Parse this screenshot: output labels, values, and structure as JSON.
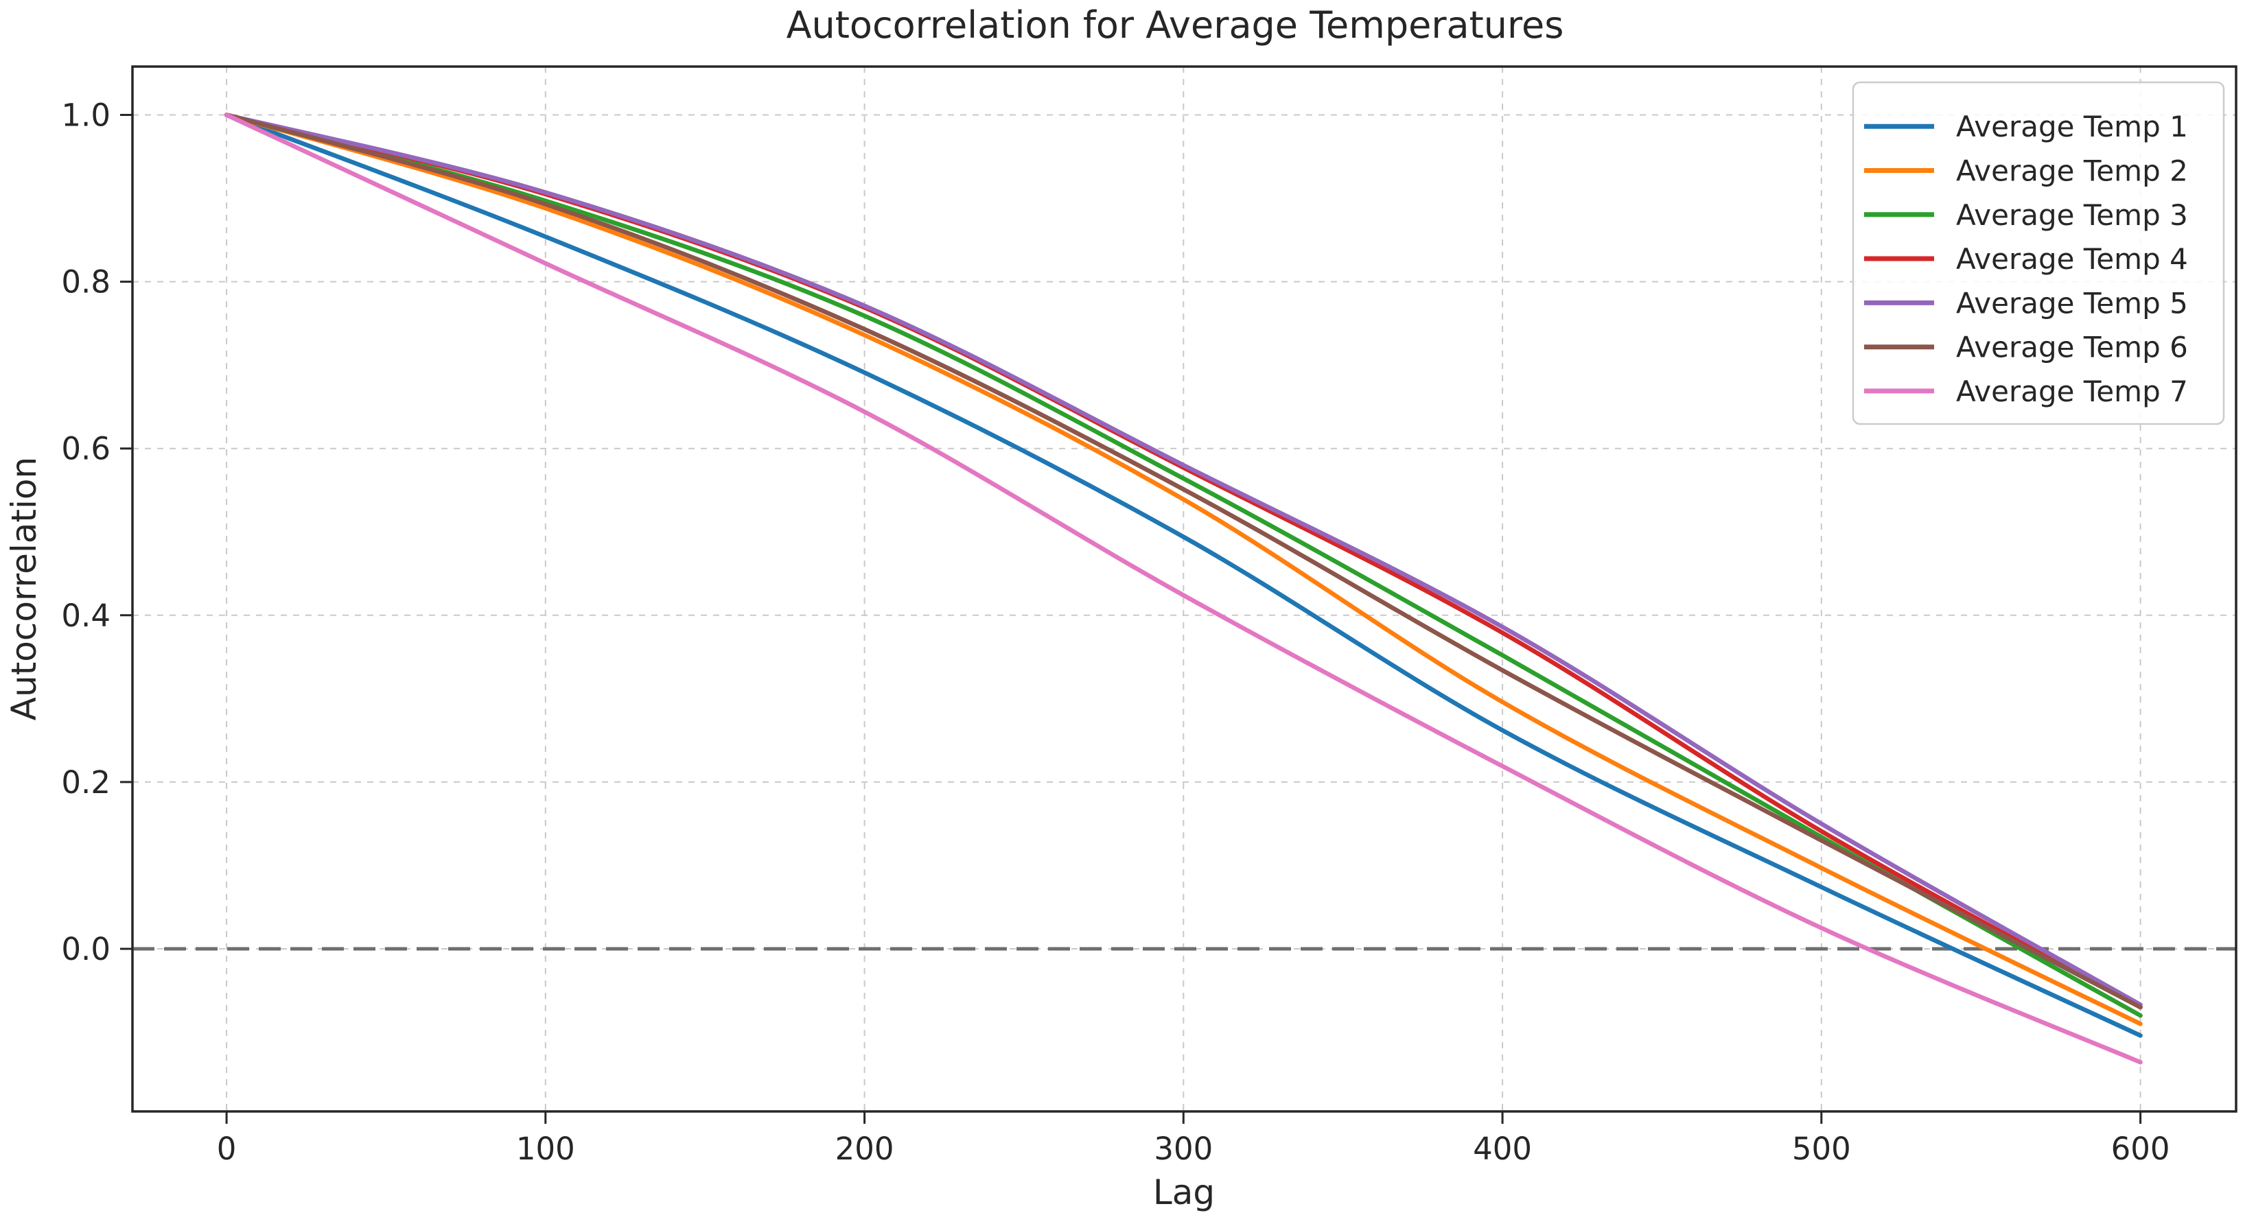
{
  "chart_data": {
    "type": "line",
    "title": "Autocorrelation for Average Temperatures",
    "xlabel": "Lag",
    "ylabel": "Autocorrelation",
    "x": [
      0,
      100,
      200,
      300,
      400,
      500,
      600
    ],
    "x_ticks": [
      0,
      100,
      200,
      300,
      400,
      500,
      600
    ],
    "x_tick_labels": [
      "0",
      "100",
      "200",
      "300",
      "400",
      "500",
      "600"
    ],
    "y_ticks": [
      0.0,
      0.2,
      0.4,
      0.6,
      0.8,
      1.0
    ],
    "y_tick_labels": [
      "0.0",
      "0.2",
      "0.4",
      "0.6",
      "0.8",
      "1.0"
    ],
    "xlim": [
      -29.5,
      630
    ],
    "ylim": [
      -0.195,
      1.058
    ],
    "grid": true,
    "grid_style": "dashed",
    "zero_line": true,
    "zero_line_color": "#6e6e6e",
    "grid_color": "#c9c9c9",
    "spine_color": "#262626",
    "legend_position": "upper right",
    "series": [
      {
        "name": "Average Temp 1",
        "color": "#1f77b4",
        "values": [
          1.0,
          0.854,
          0.691,
          0.494,
          0.262,
          0.074,
          -0.104
        ]
      },
      {
        "name": "Average Temp 2",
        "color": "#ff7f0e",
        "values": [
          1.0,
          0.888,
          0.736,
          0.539,
          0.296,
          0.097,
          -0.09
        ]
      },
      {
        "name": "Average Temp 3",
        "color": "#2ca02c",
        "values": [
          1.0,
          0.897,
          0.759,
          0.564,
          0.352,
          0.134,
          -0.08
        ]
      },
      {
        "name": "Average Temp 4",
        "color": "#d62728",
        "values": [
          1.0,
          0.905,
          0.769,
          0.577,
          0.379,
          0.141,
          -0.07
        ]
      },
      {
        "name": "Average Temp 5",
        "color": "#9467bd",
        "values": [
          1.0,
          0.907,
          0.771,
          0.58,
          0.386,
          0.15,
          -0.067
        ]
      },
      {
        "name": "Average Temp 6",
        "color": "#8c564b",
        "values": [
          1.0,
          0.893,
          0.743,
          0.551,
          0.334,
          0.13,
          -0.07
        ]
      },
      {
        "name": "Average Temp 7",
        "color": "#e377c2",
        "values": [
          1.0,
          0.822,
          0.644,
          0.424,
          0.219,
          0.025,
          -0.136
        ]
      }
    ]
  }
}
